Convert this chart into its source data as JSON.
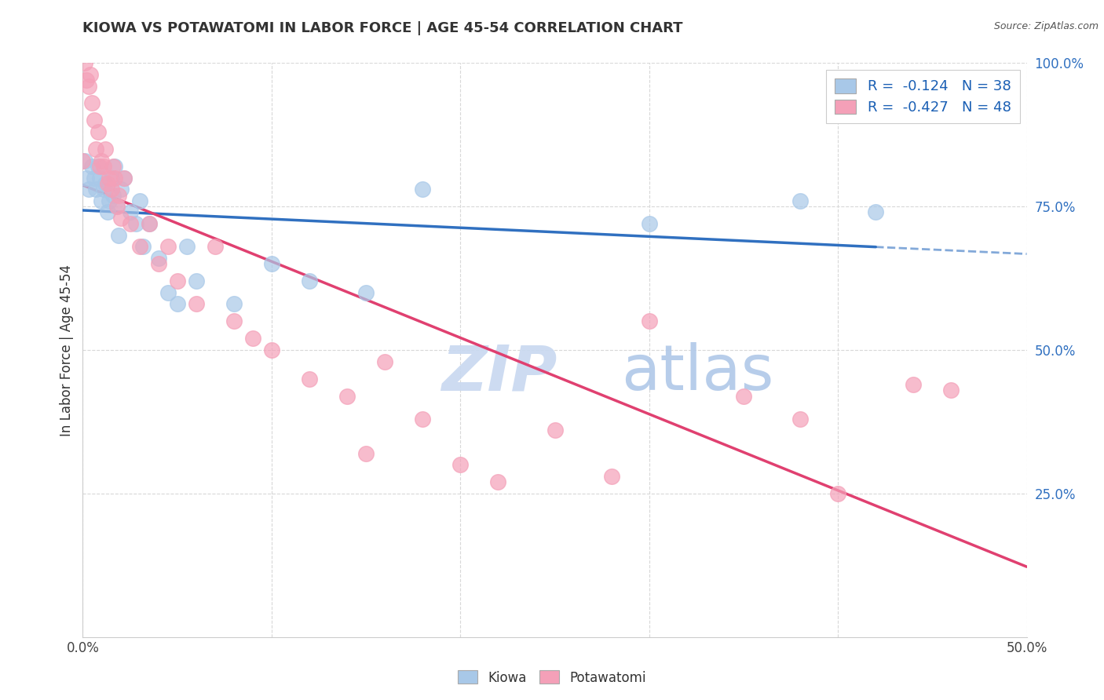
{
  "title": "KIOWA VS POTAWATOMI IN LABOR FORCE | AGE 45-54 CORRELATION CHART",
  "source": "Source: ZipAtlas.com",
  "ylabel": "In Labor Force | Age 45-54",
  "kiowa_R": -0.124,
  "kiowa_N": 38,
  "potawatomi_R": -0.427,
  "potawatomi_N": 48,
  "kiowa_color": "#a8c8e8",
  "potawatomi_color": "#f4a0b8",
  "kiowa_line_color": "#3070c0",
  "potawatomi_line_color": "#e04070",
  "watermark_zip_color": "#c8d8f0",
  "watermark_atlas_color": "#b0c8e8",
  "background_color": "#ffffff",
  "grid_color": "#d8d8d8",
  "xlim": [
    0.0,
    0.5
  ],
  "ylim": [
    0.0,
    1.0
  ],
  "kiowa_x": [
    0.001,
    0.002,
    0.003,
    0.005,
    0.006,
    0.007,
    0.008,
    0.009,
    0.01,
    0.011,
    0.012,
    0.013,
    0.014,
    0.015,
    0.016,
    0.017,
    0.018,
    0.019,
    0.02,
    0.022,
    0.025,
    0.028,
    0.03,
    0.032,
    0.035,
    0.04,
    0.045,
    0.05,
    0.055,
    0.06,
    0.08,
    0.1,
    0.12,
    0.15,
    0.18,
    0.3,
    0.38,
    0.42
  ],
  "kiowa_y": [
    0.83,
    0.8,
    0.78,
    0.82,
    0.8,
    0.78,
    0.82,
    0.8,
    0.76,
    0.78,
    0.79,
    0.74,
    0.76,
    0.8,
    0.77,
    0.82,
    0.75,
    0.7,
    0.78,
    0.8,
    0.74,
    0.72,
    0.76,
    0.68,
    0.72,
    0.66,
    0.6,
    0.58,
    0.68,
    0.62,
    0.58,
    0.65,
    0.62,
    0.6,
    0.78,
    0.72,
    0.76,
    0.74
  ],
  "potawatomi_x": [
    0.0,
    0.001,
    0.002,
    0.003,
    0.004,
    0.005,
    0.006,
    0.007,
    0.008,
    0.009,
    0.01,
    0.011,
    0.012,
    0.013,
    0.014,
    0.015,
    0.016,
    0.017,
    0.018,
    0.019,
    0.02,
    0.022,
    0.025,
    0.03,
    0.035,
    0.04,
    0.045,
    0.05,
    0.06,
    0.07,
    0.08,
    0.09,
    0.1,
    0.12,
    0.14,
    0.15,
    0.16,
    0.18,
    0.2,
    0.22,
    0.25,
    0.28,
    0.3,
    0.35,
    0.38,
    0.4,
    0.44,
    0.46
  ],
  "potawatomi_y": [
    0.83,
    1.0,
    0.97,
    0.96,
    0.98,
    0.93,
    0.9,
    0.85,
    0.88,
    0.82,
    0.83,
    0.82,
    0.85,
    0.79,
    0.8,
    0.78,
    0.82,
    0.8,
    0.75,
    0.77,
    0.73,
    0.8,
    0.72,
    0.68,
    0.72,
    0.65,
    0.68,
    0.62,
    0.58,
    0.68,
    0.55,
    0.52,
    0.5,
    0.45,
    0.42,
    0.32,
    0.48,
    0.38,
    0.3,
    0.27,
    0.36,
    0.28,
    0.55,
    0.42,
    0.38,
    0.25,
    0.44,
    0.43
  ]
}
